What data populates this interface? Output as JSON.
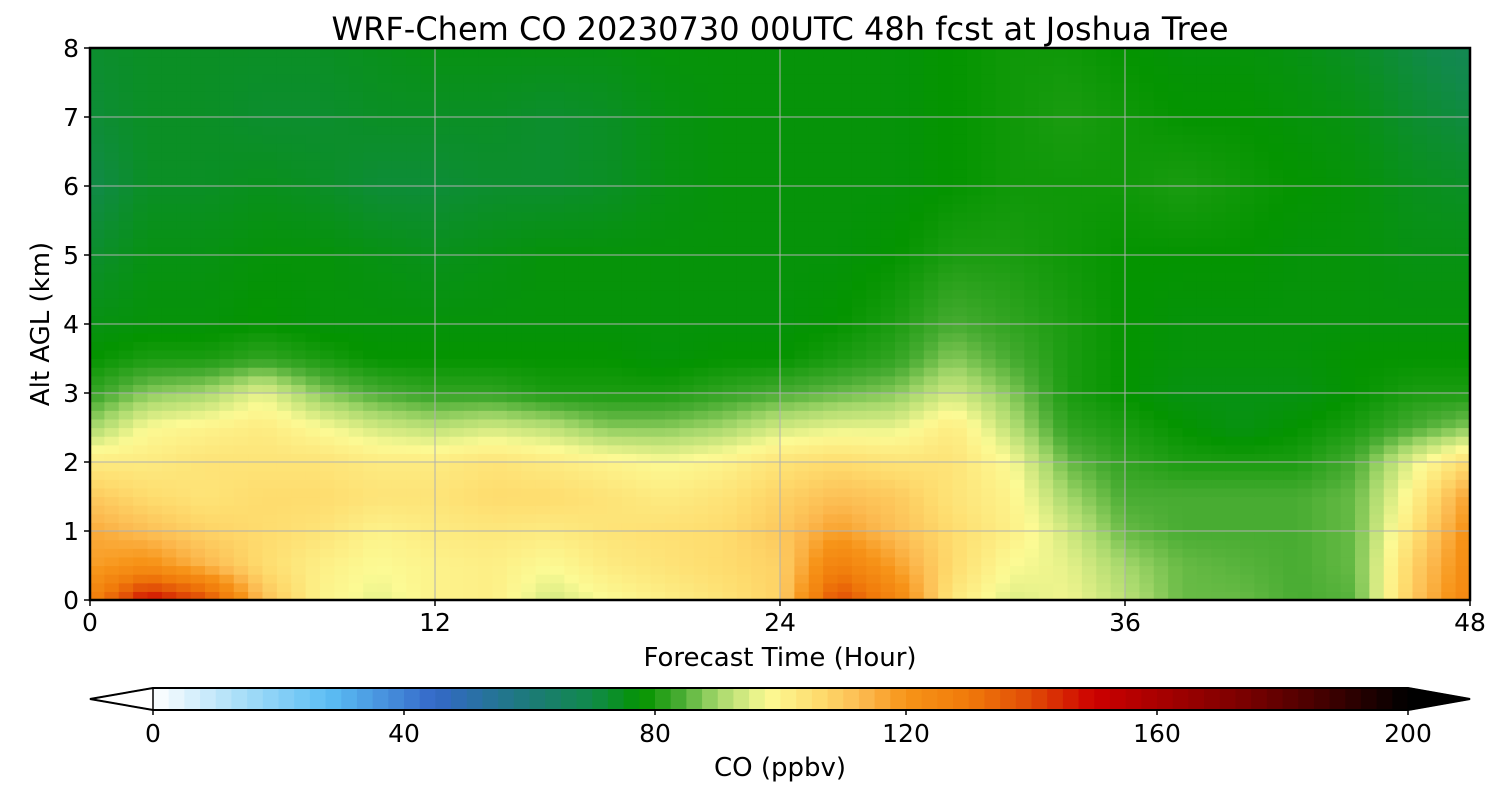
{
  "chart_data": {
    "type": "heatmap",
    "title": "WRF-Chem CO  20230730 00UTC 48h fcst at Joshua Tree",
    "xlabel": "Forecast Time (Hour)",
    "ylabel": "Alt AGL (km)",
    "xlim": [
      0,
      48
    ],
    "ylim": [
      0,
      8
    ],
    "x_ticks": [
      0,
      12,
      24,
      36,
      48
    ],
    "y_ticks": [
      0,
      1,
      2,
      3,
      4,
      5,
      6,
      7,
      8
    ],
    "grid": true,
    "x_hours": [
      0,
      2,
      4,
      6,
      8,
      10,
      12,
      14,
      16,
      18,
      20,
      22,
      24,
      26,
      28,
      30,
      32,
      34,
      36,
      38,
      40,
      42,
      44,
      46,
      48
    ],
    "z_km": [
      0,
      0.5,
      1,
      1.5,
      2,
      2.5,
      3,
      3.5,
      4,
      5,
      6,
      7,
      8
    ],
    "co_ppbv": [
      [
        126,
        150,
        140,
        112,
        100,
        96,
        100,
        101,
        94,
        98,
        101,
        104,
        108,
        140,
        126,
        103,
        95,
        97,
        92,
        86,
        86,
        84,
        85,
        110,
        126
      ],
      [
        118,
        122,
        114,
        106,
        101,
        98,
        100,
        101,
        98,
        102,
        104,
        106,
        108,
        128,
        118,
        106,
        98,
        96,
        90,
        86,
        85,
        84,
        86,
        108,
        124
      ],
      [
        116,
        112,
        108,
        106,
        104,
        100,
        102,
        103,
        102,
        104,
        105,
        106,
        110,
        118,
        112,
        106,
        101,
        94,
        86,
        84,
        84,
        84,
        86,
        104,
        122
      ],
      [
        110,
        106,
        104,
        106,
        106,
        104,
        104,
        106,
        106,
        104,
        102,
        104,
        108,
        112,
        110,
        104,
        100,
        90,
        84,
        84,
        84,
        84,
        86,
        100,
        118
      ],
      [
        102,
        102,
        104,
        104,
        104,
        102,
        102,
        104,
        102,
        100,
        98,
        100,
        104,
        106,
        104,
        104,
        98,
        86,
        82,
        80,
        80,
        80,
        84,
        96,
        106
      ],
      [
        90,
        98,
        100,
        102,
        98,
        94,
        92,
        94,
        92,
        88,
        88,
        90,
        94,
        96,
        96,
        102,
        92,
        82,
        80,
        78,
        76,
        78,
        80,
        84,
        88
      ],
      [
        82,
        88,
        90,
        96,
        88,
        84,
        82,
        82,
        80,
        80,
        80,
        82,
        84,
        86,
        88,
        94,
        88,
        80,
        78,
        76,
        76,
        76,
        78,
        80,
        80
      ],
      [
        78,
        80,
        80,
        82,
        80,
        78,
        78,
        78,
        78,
        78,
        77,
        78,
        78,
        80,
        82,
        88,
        84,
        80,
        78,
        77,
        77,
        77,
        78,
        78,
        78
      ],
      [
        76,
        77,
        77,
        78,
        77,
        77,
        77,
        77,
        77,
        77,
        77,
        77,
        77,
        78,
        80,
        84,
        82,
        80,
        78,
        77,
        77,
        77,
        77,
        77,
        77
      ],
      [
        73,
        76,
        76,
        77,
        77,
        76,
        75,
        76,
        77,
        77,
        77,
        77,
        77,
        77,
        78,
        80,
        80,
        79,
        78,
        78,
        78,
        77,
        77,
        76,
        76
      ],
      [
        70,
        74,
        74,
        75,
        74,
        72,
        72,
        73,
        73,
        74,
        76,
        77,
        77,
        77,
        77,
        78,
        79,
        79,
        79,
        80,
        79,
        78,
        77,
        75,
        74
      ],
      [
        72,
        74,
        74,
        73,
        73,
        74,
        74,
        74,
        73,
        74,
        76,
        77,
        77,
        77,
        77,
        78,
        79,
        80,
        79,
        78,
        78,
        77,
        76,
        73,
        71
      ],
      [
        73,
        74,
        74,
        74,
        74,
        75,
        76,
        76,
        76,
        76,
        77,
        77,
        77,
        77,
        77,
        78,
        79,
        79,
        78,
        77,
        77,
        76,
        74,
        71,
        68
      ]
    ],
    "colorbar": {
      "label": "CO  (ppbv)",
      "min": 0,
      "max": 200,
      "ticks": [
        0,
        40,
        80,
        120,
        160,
        200
      ],
      "extend": "both",
      "stops": [
        {
          "v": 0,
          "c": "#ffffff"
        },
        {
          "v": 14,
          "c": "#a8def8"
        },
        {
          "v": 28,
          "c": "#5cbef4"
        },
        {
          "v": 45,
          "c": "#3468c8"
        },
        {
          "v": 60,
          "c": "#1c7a78"
        },
        {
          "v": 70,
          "c": "#118a4a"
        },
        {
          "v": 78,
          "c": "#049400"
        },
        {
          "v": 84,
          "c": "#48ac32"
        },
        {
          "v": 90,
          "c": "#a6d86c"
        },
        {
          "v": 98,
          "c": "#fcfa94"
        },
        {
          "v": 106,
          "c": "#fedc6e"
        },
        {
          "v": 113,
          "c": "#fcba50"
        },
        {
          "v": 120,
          "c": "#f79418"
        },
        {
          "v": 130,
          "c": "#f07a0a"
        },
        {
          "v": 140,
          "c": "#e04a06"
        },
        {
          "v": 150,
          "c": "#cc0000"
        },
        {
          "v": 162,
          "c": "#a20000"
        },
        {
          "v": 175,
          "c": "#760000"
        },
        {
          "v": 188,
          "c": "#3c0000"
        },
        {
          "v": 200,
          "c": "#000000"
        }
      ]
    }
  }
}
